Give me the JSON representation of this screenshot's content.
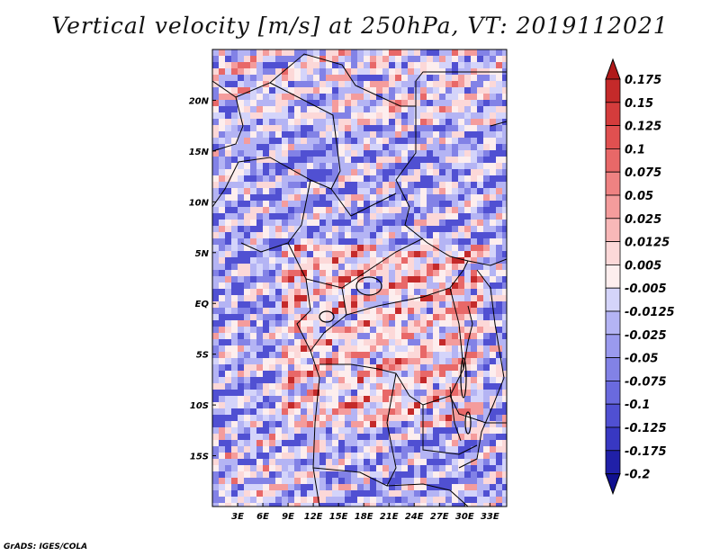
{
  "title": "Vertical velocity [m/s] at 250hPa, VT: 2019112021",
  "credit": "GrADS: IGES/COLA",
  "map": {
    "lat_range": [
      -20,
      25
    ],
    "lon_range": [
      0,
      35
    ],
    "lat_ticks": [
      {
        "value": 20,
        "label": "20N"
      },
      {
        "value": 15,
        "label": "15N"
      },
      {
        "value": 10,
        "label": "10N"
      },
      {
        "value": 5,
        "label": "5N"
      },
      {
        "value": 0,
        "label": "EQ"
      },
      {
        "value": -5,
        "label": "5S"
      },
      {
        "value": -10,
        "label": "10S"
      },
      {
        "value": -15,
        "label": "15S"
      }
    ],
    "lon_ticks": [
      {
        "value": 3,
        "label": "3E"
      },
      {
        "value": 6,
        "label": "6E"
      },
      {
        "value": 9,
        "label": "9E"
      },
      {
        "value": 12,
        "label": "12E"
      },
      {
        "value": 15,
        "label": "15E"
      },
      {
        "value": 18,
        "label": "18E"
      },
      {
        "value": 21,
        "label": "21E"
      },
      {
        "value": 24,
        "label": "24E"
      },
      {
        "value": 27,
        "label": "27E"
      },
      {
        "value": 30,
        "label": "30E"
      },
      {
        "value": 33,
        "label": "33E"
      }
    ]
  },
  "colorbar": {
    "levels": [
      "0.175",
      "0.15",
      "0.125",
      "0.1",
      "0.075",
      "0.05",
      "0.025",
      "0.0125",
      "0.005",
      "-0.005",
      "-0.0125",
      "-0.025",
      "-0.05",
      "-0.075",
      "-0.1",
      "-0.125",
      "-0.175",
      "-0.2"
    ],
    "colors": [
      "#b01a1a",
      "#c42a2a",
      "#d43c3c",
      "#e05050",
      "#e86868",
      "#ef8282",
      "#f49c9c",
      "#f8b8b8",
      "#fcd8d8",
      "#fdeeee",
      "#d4d4fa",
      "#b4b4f4",
      "#9a9aee",
      "#8282e6",
      "#6a6ade",
      "#5050d2",
      "#3838c2",
      "#2020a8",
      "#101090"
    ]
  }
}
